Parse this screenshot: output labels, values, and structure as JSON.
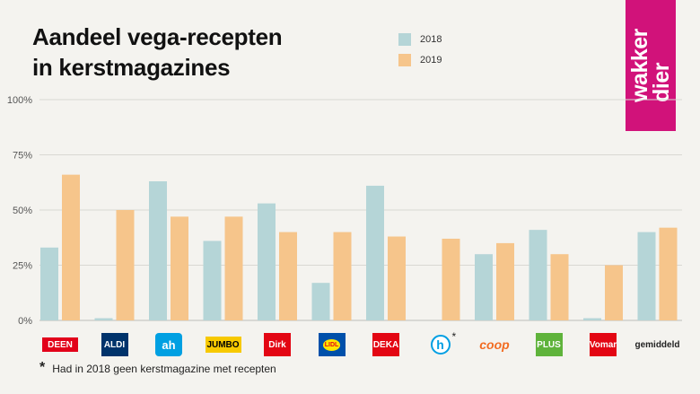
{
  "title": {
    "line1": "Aandeel vega-recepten",
    "line2": "in kerstmagazines"
  },
  "legend": [
    {
      "label": "2018",
      "color": "#b5d5d7"
    },
    {
      "label": "2019",
      "color": "#f6c58b"
    }
  ],
  "brand": {
    "text": "wakker\ndier",
    "color": "#d1127a"
  },
  "chart_data": {
    "type": "bar",
    "categories": [
      "DEEN",
      "ALDI",
      "AH",
      "JUMBO",
      "Dirk",
      "LIDL",
      "DEKA",
      "Hoogvliet",
      "coop",
      "PLUS",
      "Vomar",
      "gemiddeld"
    ],
    "series": [
      {
        "name": "2018",
        "color": "#b5d5d7",
        "values": [
          33,
          1,
          63,
          36,
          53,
          17,
          61,
          null,
          30,
          41,
          1,
          40
        ]
      },
      {
        "name": "2019",
        "color": "#f6c58b",
        "values": [
          66,
          50,
          47,
          47,
          40,
          40,
          38,
          37,
          35,
          30,
          25,
          42
        ]
      }
    ],
    "ylim": [
      0,
      100
    ],
    "yticks": [
      "0%",
      "25%",
      "50%",
      "75%",
      "100%"
    ],
    "ytick_values": [
      0,
      25,
      50,
      75,
      100
    ],
    "grid": true
  },
  "logos": [
    {
      "text": "DEEN",
      "bg": "#e2001a",
      "fg": "#ffffff",
      "icon": "deen-logo"
    },
    {
      "text": "ALDI",
      "bg": "#00336b",
      "fg": "#ffffff",
      "icon": "aldi-logo"
    },
    {
      "text": "ah",
      "bg": "#00a0e2",
      "fg": "#ffffff",
      "icon": "albert-heijn-logo"
    },
    {
      "text": "JUMBO",
      "bg": "#f7c900",
      "fg": "#000000",
      "icon": "jumbo-logo"
    },
    {
      "text": "Dirk",
      "bg": "#e30613",
      "fg": "#ffffff",
      "icon": "dirk-logo"
    },
    {
      "text": "LIDL",
      "bg": "#0050aa",
      "fg": "#e60a14",
      "icon": "lidl-logo"
    },
    {
      "text": "DEKA",
      "bg": "#e30613",
      "fg": "#ffffff",
      "icon": "dekamarkt-logo"
    },
    {
      "text": "h",
      "bg": "#ffffff",
      "fg": "#009fe3",
      "icon": "hoogvliet-logo",
      "mark": "*"
    },
    {
      "text": "coop",
      "bg": "transparent",
      "fg": "#f26c22",
      "icon": "coop-logo"
    },
    {
      "text": "PLUS",
      "bg": "#5fb33b",
      "fg": "#ffffff",
      "icon": "plus-logo"
    },
    {
      "text": "Vomar",
      "bg": "#e30613",
      "fg": "#ffffff",
      "icon": "vomar-logo"
    },
    {
      "text": "gemiddeld",
      "bg": "transparent",
      "fg": "#222222",
      "icon": "none"
    }
  ],
  "footnote": {
    "mark": "*",
    "text": "Had in 2018 geen kerstmagazine met recepten"
  }
}
